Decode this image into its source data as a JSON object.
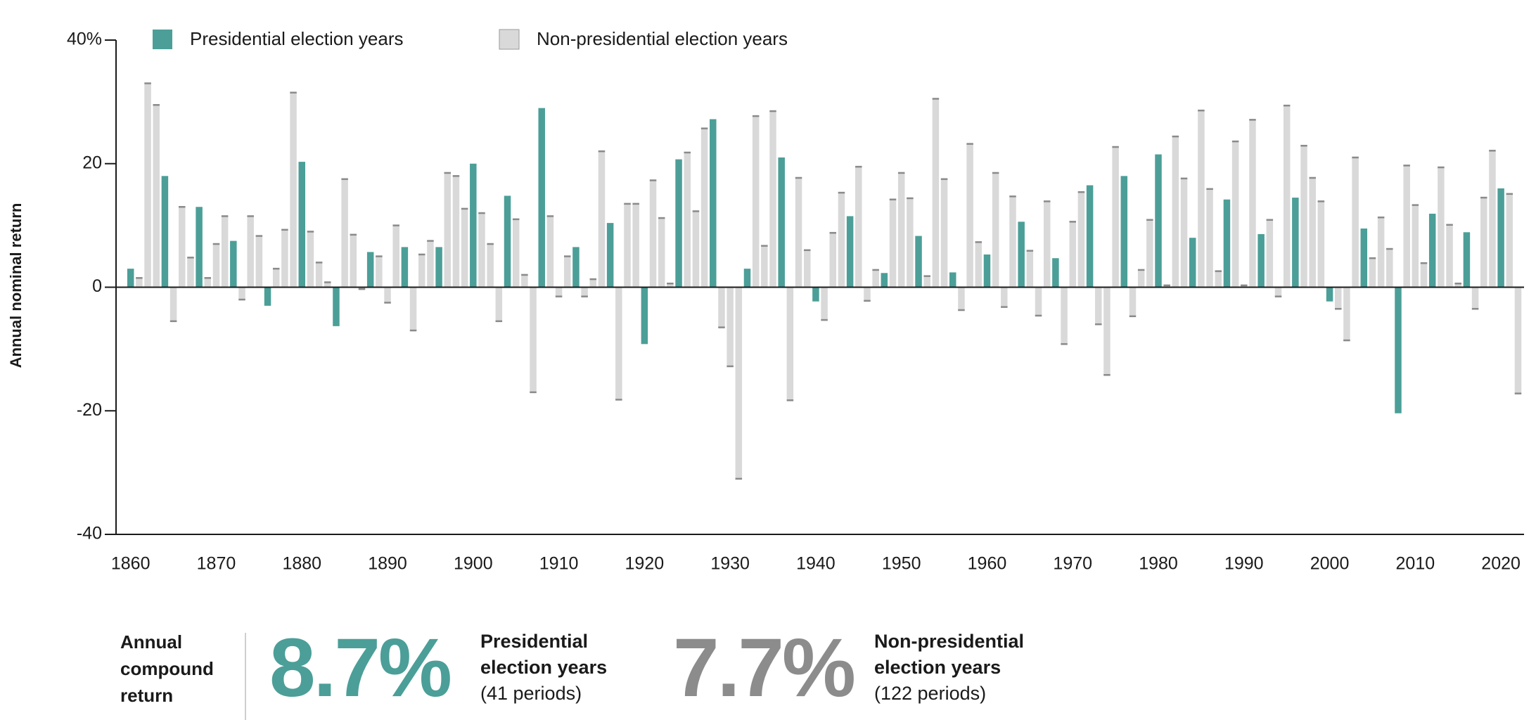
{
  "chart_data": {
    "type": "bar",
    "y_label": "Annual nominal return",
    "x": [
      1860,
      1861,
      1862,
      1863,
      1864,
      1865,
      1866,
      1867,
      1868,
      1869,
      1870,
      1871,
      1872,
      1873,
      1874,
      1875,
      1876,
      1877,
      1878,
      1879,
      1880,
      1881,
      1882,
      1883,
      1884,
      1885,
      1886,
      1887,
      1888,
      1889,
      1890,
      1891,
      1892,
      1893,
      1894,
      1895,
      1896,
      1897,
      1898,
      1899,
      1900,
      1901,
      1902,
      1903,
      1904,
      1905,
      1906,
      1907,
      1908,
      1909,
      1910,
      1911,
      1912,
      1913,
      1914,
      1915,
      1916,
      1917,
      1918,
      1919,
      1920,
      1921,
      1922,
      1923,
      1924,
      1925,
      1926,
      1927,
      1928,
      1929,
      1930,
      1931,
      1932,
      1933,
      1934,
      1935,
      1936,
      1937,
      1938,
      1939,
      1940,
      1941,
      1942,
      1943,
      1944,
      1945,
      1946,
      1947,
      1948,
      1949,
      1950,
      1951,
      1952,
      1953,
      1954,
      1955,
      1956,
      1957,
      1958,
      1959,
      1960,
      1961,
      1962,
      1963,
      1964,
      1965,
      1966,
      1967,
      1968,
      1969,
      1970,
      1971,
      1972,
      1973,
      1974,
      1975,
      1976,
      1977,
      1978,
      1979,
      1980,
      1981,
      1982,
      1983,
      1984,
      1985,
      1986,
      1987,
      1988,
      1989,
      1990,
      1991,
      1992,
      1993,
      1994,
      1995,
      1996,
      1997,
      1998,
      1999,
      2000,
      2001,
      2002,
      2003,
      2004,
      2005,
      2006,
      2007,
      2008,
      2009,
      2010,
      2011,
      2012,
      2013,
      2014,
      2015,
      2016,
      2017,
      2018,
      2019,
      2020,
      2021,
      2022
    ],
    "series": [
      {
        "name": "Presidential election years",
        "color": "#4b9f98",
        "values": [
          3,
          null,
          null,
          null,
          18,
          null,
          null,
          null,
          13,
          null,
          null,
          null,
          7.5,
          null,
          null,
          null,
          -3,
          null,
          null,
          null,
          20.3,
          null,
          null,
          null,
          -6.3,
          null,
          null,
          null,
          5.7,
          null,
          null,
          null,
          6.5,
          null,
          null,
          null,
          6.5,
          null,
          null,
          null,
          20,
          null,
          null,
          null,
          14.8,
          null,
          null,
          null,
          29,
          null,
          null,
          null,
          6.5,
          null,
          null,
          null,
          10.4,
          null,
          null,
          null,
          -9.2,
          null,
          null,
          null,
          20.7,
          null,
          null,
          null,
          27.2,
          null,
          null,
          null,
          3,
          null,
          null,
          null,
          21,
          null,
          null,
          null,
          -2.3,
          null,
          null,
          null,
          11.5,
          null,
          null,
          null,
          2.3,
          null,
          null,
          null,
          8.3,
          null,
          null,
          null,
          2.4,
          null,
          null,
          null,
          5.3,
          null,
          null,
          null,
          10.6,
          null,
          null,
          null,
          4.7,
          null,
          null,
          null,
          16.5,
          null,
          null,
          null,
          18,
          null,
          null,
          null,
          21.5,
          null,
          null,
          null,
          8,
          null,
          null,
          null,
          14.2,
          null,
          null,
          null,
          8.6,
          null,
          null,
          null,
          14.5,
          null,
          null,
          null,
          -2.3,
          null,
          null,
          null,
          9.5,
          null,
          null,
          null,
          -20.4,
          null,
          null,
          null,
          11.9,
          null,
          null,
          null,
          8.9,
          null,
          null,
          null,
          16,
          null,
          null
        ]
      },
      {
        "name": "Non-presidential election years",
        "color": "#d9d9d9",
        "values": [
          null,
          1.5,
          33,
          29.5,
          null,
          -5.5,
          13,
          4.8,
          null,
          1.5,
          7,
          11.5,
          null,
          -2,
          11.5,
          8.3,
          null,
          3,
          9.3,
          31.5,
          null,
          9,
          4,
          0.8,
          null,
          17.5,
          8.5,
          -0.3,
          null,
          5,
          -2.5,
          10,
          null,
          -7,
          5.3,
          7.5,
          null,
          18.5,
          18,
          12.7,
          null,
          12,
          7,
          -5.5,
          null,
          11,
          2,
          -17,
          null,
          11.5,
          -1.5,
          5,
          null,
          -1.5,
          1.3,
          22,
          null,
          -18.2,
          13.5,
          13.5,
          null,
          17.3,
          11.2,
          0.6,
          null,
          21.8,
          12.3,
          25.7,
          null,
          -6.5,
          -12.8,
          -31,
          null,
          27.7,
          6.7,
          28.5,
          null,
          -18.3,
          17.7,
          6,
          null,
          -5.3,
          8.8,
          15.3,
          null,
          19.5,
          -2.2,
          2.8,
          null,
          14.2,
          18.5,
          14.4,
          null,
          1.8,
          30.5,
          17.5,
          null,
          -3.7,
          23.2,
          7.3,
          null,
          18.5,
          -3.2,
          14.7,
          null,
          5.9,
          -4.6,
          13.9,
          null,
          -9.2,
          10.6,
          15.4,
          null,
          -6,
          -14.2,
          22.7,
          null,
          -4.7,
          2.8,
          10.9,
          null,
          0.3,
          24.4,
          17.6,
          null,
          28.6,
          15.9,
          2.6,
          null,
          23.6,
          0.3,
          27.1,
          null,
          10.9,
          -1.5,
          29.4,
          null,
          22.9,
          17.7,
          13.9,
          null,
          -3.5,
          -8.6,
          21,
          null,
          4.7,
          11.3,
          6.2,
          null,
          19.7,
          13.3,
          3.9,
          null,
          19.4,
          10.1,
          0.6,
          null,
          -3.5,
          14.5,
          22.1,
          null,
          15.1,
          -17.2
        ]
      }
    ],
    "xlim": [
      1858.3,
      2022.7
    ],
    "xticks": [
      1860,
      1870,
      1880,
      1890,
      1900,
      1910,
      1920,
      1930,
      1940,
      1950,
      1960,
      1970,
      1980,
      1990,
      2000,
      2010,
      2020
    ],
    "ylim": [
      -40,
      40
    ],
    "yticks": [
      -40,
      -20,
      0,
      {
        "value": 20,
        "label": "20"
      },
      {
        "value": 40,
        "label": "40%"
      }
    ],
    "legend": "top-left"
  },
  "summary": {
    "title": "Annual compound return",
    "items": [
      {
        "value": "8.7%",
        "label": "Presidential election years",
        "note": "(41 periods)",
        "color": "#4b9f98"
      },
      {
        "value": "7.7%",
        "label": "Non-presidential election years",
        "note": "(122 periods)",
        "color": "#8c8c8c"
      }
    ]
  }
}
